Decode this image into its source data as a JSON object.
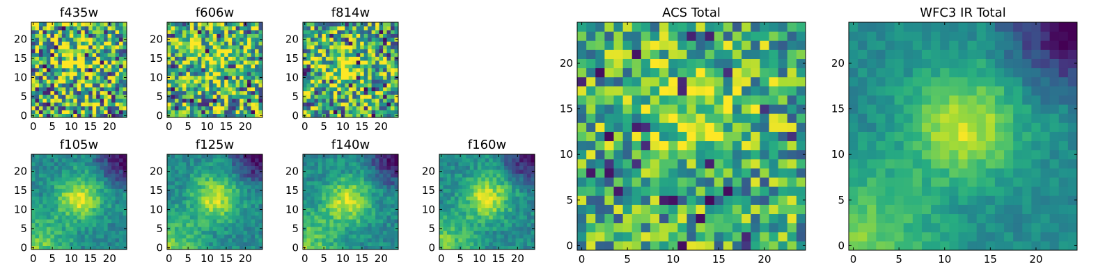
{
  "chart_data": [
    {
      "type": "heatmap",
      "title": "f435w",
      "xlim": [
        0,
        24
      ],
      "ylim": [
        0,
        24
      ],
      "xticks": [
        0,
        5,
        10,
        15,
        20
      ],
      "yticks": [
        0,
        5,
        10,
        15,
        20
      ],
      "peak": {
        "x": 11,
        "y": 15
      },
      "colormap": "viridis",
      "noise": 0.55,
      "ir": false
    },
    {
      "type": "heatmap",
      "title": "f606w",
      "xlim": [
        0,
        24
      ],
      "ylim": [
        0,
        24
      ],
      "xticks": [
        0,
        5,
        10,
        15,
        20
      ],
      "yticks": [
        0,
        5,
        10,
        15,
        20
      ],
      "peak": {
        "x": 12,
        "y": 14
      },
      "colormap": "viridis",
      "noise": 0.45,
      "ir": false
    },
    {
      "type": "heatmap",
      "title": "f814w",
      "xlim": [
        0,
        24
      ],
      "ylim": [
        0,
        24
      ],
      "xticks": [
        0,
        5,
        10,
        15,
        20
      ],
      "yticks": [
        0,
        5,
        10,
        15,
        20
      ],
      "peak": {
        "x": 12,
        "y": 13
      },
      "colormap": "viridis",
      "noise": 0.45,
      "ir": false
    },
    {
      "type": "heatmap",
      "title": "f105w",
      "xlim": [
        0,
        24
      ],
      "ylim": [
        0,
        24
      ],
      "xticks": [
        0,
        5,
        10,
        15,
        20
      ],
      "yticks": [
        0,
        5,
        10,
        15,
        20
      ],
      "peak": {
        "x": 12,
        "y": 13
      },
      "colormap": "viridis",
      "noise": 0.12,
      "ir": true
    },
    {
      "type": "heatmap",
      "title": "f125w",
      "xlim": [
        0,
        24
      ],
      "ylim": [
        0,
        24
      ],
      "xticks": [
        0,
        5,
        10,
        15,
        20
      ],
      "yticks": [
        0,
        5,
        10,
        15,
        20
      ],
      "peak": {
        "x": 12,
        "y": 13
      },
      "colormap": "viridis",
      "noise": 0.12,
      "ir": true
    },
    {
      "type": "heatmap",
      "title": "f140w",
      "xlim": [
        0,
        24
      ],
      "ylim": [
        0,
        24
      ],
      "xticks": [
        0,
        5,
        10,
        15,
        20
      ],
      "yticks": [
        0,
        5,
        10,
        15,
        20
      ],
      "peak": {
        "x": 11,
        "y": 12
      },
      "colormap": "viridis",
      "noise": 0.12,
      "ir": true
    },
    {
      "type": "heatmap",
      "title": "f160w",
      "xlim": [
        0,
        24
      ],
      "ylim": [
        0,
        24
      ],
      "xticks": [
        0,
        5,
        10,
        15,
        20
      ],
      "yticks": [
        0,
        5,
        10,
        15,
        20
      ],
      "peak": {
        "x": 12,
        "y": 13
      },
      "colormap": "viridis",
      "noise": 0.12,
      "ir": true
    },
    {
      "type": "heatmap",
      "title": "ACS Total",
      "xlim": [
        0,
        24
      ],
      "ylim": [
        0,
        24
      ],
      "xticks": [
        0,
        5,
        10,
        15,
        20
      ],
      "yticks": [
        0,
        5,
        10,
        15,
        20
      ],
      "peak": {
        "x": 12,
        "y": 15
      },
      "colormap": "viridis",
      "noise": 0.35,
      "ir": false
    },
    {
      "type": "heatmap",
      "title": "WFC3 IR Total",
      "xlim": [
        0,
        24
      ],
      "ylim": [
        0,
        24
      ],
      "xticks": [
        0,
        5,
        10,
        15,
        20
      ],
      "yticks": [
        0,
        5,
        10,
        15,
        20
      ],
      "peak": {
        "x": 12,
        "y": 13
      },
      "colormap": "viridis",
      "noise": 0.08,
      "ir": true
    }
  ]
}
